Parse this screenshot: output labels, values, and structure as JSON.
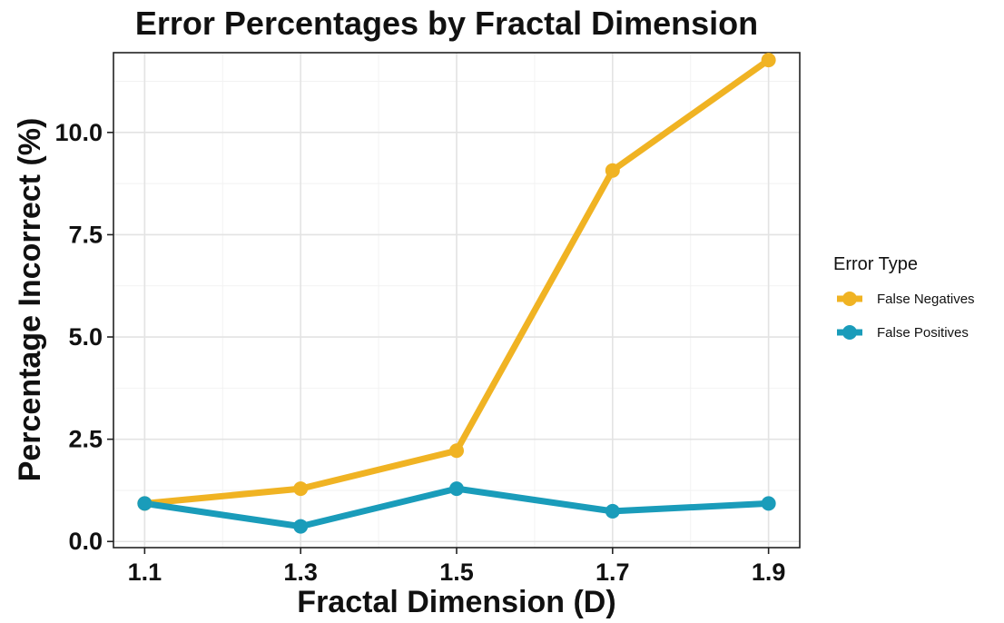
{
  "chart_data": {
    "type": "line",
    "title": "Error Percentages by Fractal Dimension",
    "xlabel": "Fractal Dimension (D)",
    "ylabel": "Percentage Incorrect (%)",
    "x": [
      1.1,
      1.3,
      1.5,
      1.7,
      1.9
    ],
    "x_tick_labels": [
      "1.1",
      "1.3",
      "1.5",
      "1.7",
      "1.9"
    ],
    "y_ticks": [
      0.0,
      2.5,
      5.0,
      7.5,
      10.0
    ],
    "y_tick_labels": [
      "0.0",
      "2.5",
      "5.0",
      "7.5",
      "10.0"
    ],
    "xlim": [
      1.06,
      1.94
    ],
    "ylim": [
      -0.15,
      11.95
    ],
    "grid": true,
    "legend_title": "Error Type",
    "legend_position": "right",
    "series": [
      {
        "name": "False Negatives",
        "color": "#F0B323",
        "values": [
          0.93,
          1.29,
          2.22,
          9.07,
          11.77
        ]
      },
      {
        "name": "False Positives",
        "color": "#1A9CBA",
        "values": [
          0.93,
          0.37,
          1.29,
          0.74,
          0.93
        ]
      }
    ]
  }
}
